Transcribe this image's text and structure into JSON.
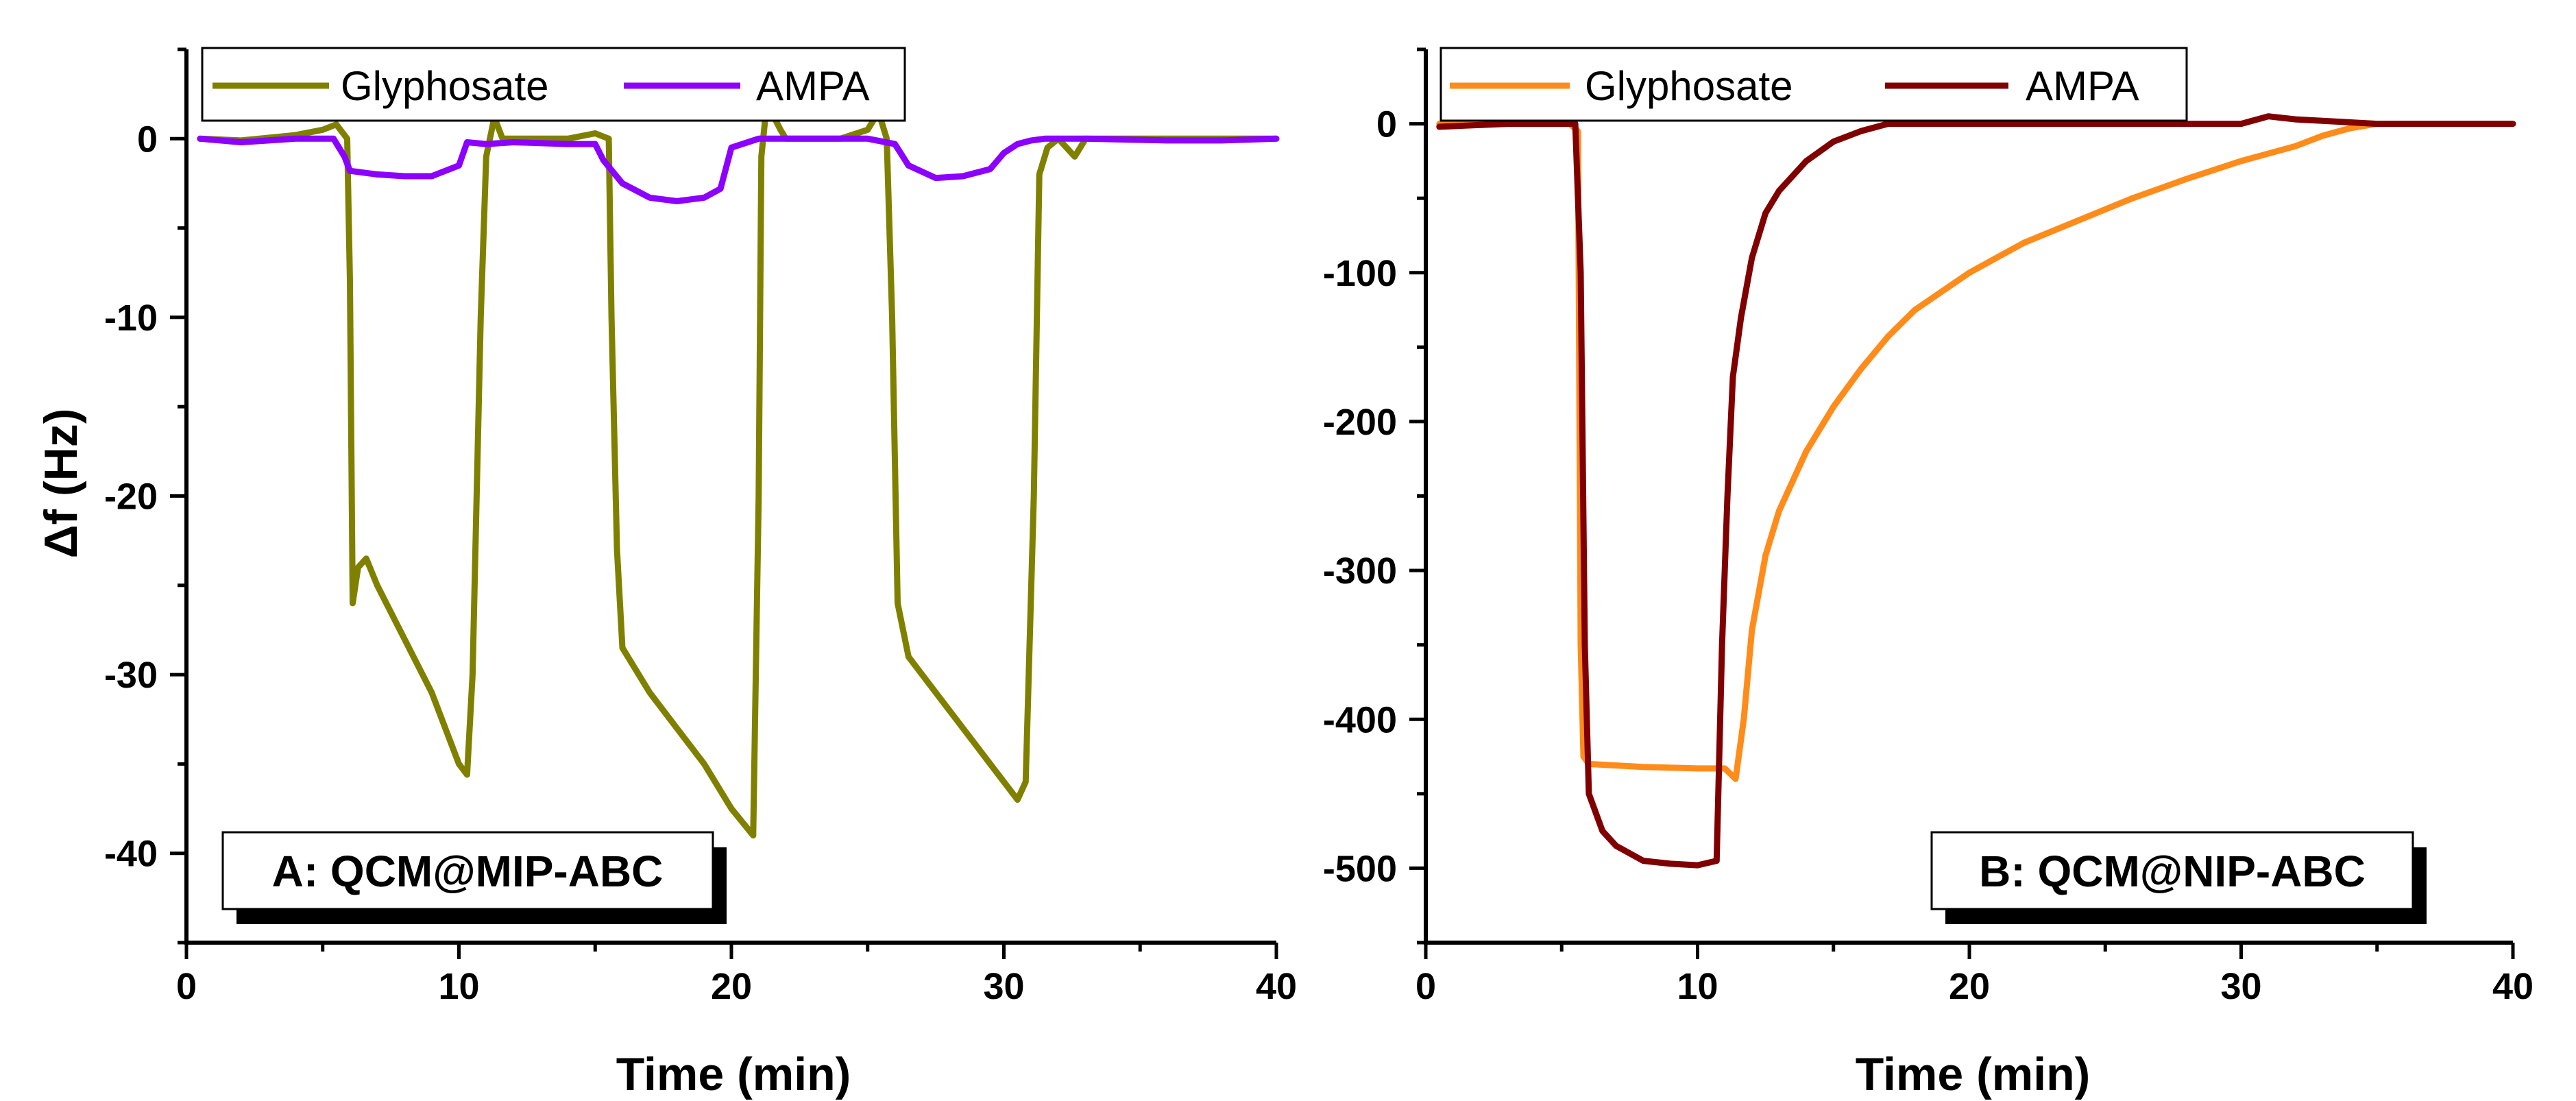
{
  "chart_data": [
    {
      "type": "line",
      "panel_label": "A: QCM@MIP-ABC",
      "xlabel": "Time (min)",
      "ylabel": "Δf (Hz)",
      "xlim": [
        0,
        40
      ],
      "ylim": [
        -45,
        5
      ],
      "xticks": [
        0,
        10,
        20,
        30,
        40
      ],
      "yticks": [
        0,
        -10,
        -20,
        -30,
        -40
      ],
      "legend_position": "top-left",
      "series": [
        {
          "name": "Glyphosate",
          "color": "#808000",
          "points": [
            [
              0.5,
              0
            ],
            [
              2,
              -0.1
            ],
            [
              4,
              0.2
            ],
            [
              5,
              0.5
            ],
            [
              5.5,
              0.8
            ],
            [
              5.9,
              0
            ],
            [
              6.0,
              -8
            ],
            [
              6.1,
              -26
            ],
            [
              6.3,
              -24
            ],
            [
              6.6,
              -23.5
            ],
            [
              7,
              -25
            ],
            [
              8,
              -28
            ],
            [
              9,
              -31
            ],
            [
              10,
              -35
            ],
            [
              10.3,
              -35.6
            ],
            [
              10.5,
              -30
            ],
            [
              10.8,
              -10
            ],
            [
              11,
              -1
            ],
            [
              11.3,
              1.2
            ],
            [
              11.6,
              0
            ],
            [
              12,
              0
            ],
            [
              14,
              0
            ],
            [
              15,
              0.3
            ],
            [
              15.5,
              0
            ],
            [
              15.6,
              -10
            ],
            [
              15.8,
              -23
            ],
            [
              16,
              -28.5
            ],
            [
              17,
              -31
            ],
            [
              18,
              -33
            ],
            [
              19,
              -35
            ],
            [
              20,
              -37.5
            ],
            [
              20.8,
              -39
            ],
            [
              21,
              -20
            ],
            [
              21.1,
              -1
            ],
            [
              21.3,
              2
            ],
            [
              21.8,
              0.5
            ],
            [
              22,
              0
            ],
            [
              24,
              0
            ],
            [
              25,
              0.5
            ],
            [
              25.4,
              1.5
            ],
            [
              25.7,
              0
            ],
            [
              25.9,
              -10
            ],
            [
              26.1,
              -26
            ],
            [
              26.5,
              -29
            ],
            [
              27.5,
              -31
            ],
            [
              28.5,
              -33
            ],
            [
              29.5,
              -35
            ],
            [
              30.5,
              -37
            ],
            [
              30.8,
              -36
            ],
            [
              31.1,
              -20
            ],
            [
              31.3,
              -2
            ],
            [
              31.6,
              -0.5
            ],
            [
              32,
              0
            ],
            [
              32.6,
              -1
            ],
            [
              33,
              0
            ],
            [
              35,
              0
            ],
            [
              38,
              0
            ],
            [
              40,
              0
            ]
          ]
        },
        {
          "name": "AMPA",
          "color": "#8b00ff",
          "points": [
            [
              0.5,
              0
            ],
            [
              2,
              -0.2
            ],
            [
              4,
              0
            ],
            [
              5.4,
              0
            ],
            [
              5.8,
              -1
            ],
            [
              6,
              -1.8
            ],
            [
              7,
              -2
            ],
            [
              8,
              -2.1
            ],
            [
              9,
              -2.1
            ],
            [
              10,
              -1.5
            ],
            [
              10.3,
              -0.2
            ],
            [
              11,
              -0.3
            ],
            [
              12,
              -0.2
            ],
            [
              14,
              -0.3
            ],
            [
              15,
              -0.3
            ],
            [
              15.3,
              -1.2
            ],
            [
              16,
              -2.5
            ],
            [
              17,
              -3.3
            ],
            [
              18,
              -3.5
            ],
            [
              19,
              -3.3
            ],
            [
              19.6,
              -2.8
            ],
            [
              20,
              -0.5
            ],
            [
              21,
              0
            ],
            [
              22,
              0
            ],
            [
              24,
              0
            ],
            [
              25,
              0
            ],
            [
              26,
              -0.3
            ],
            [
              26.5,
              -1.5
            ],
            [
              27.5,
              -2.2
            ],
            [
              28.5,
              -2.1
            ],
            [
              29.5,
              -1.7
            ],
            [
              30,
              -0.8
            ],
            [
              30.5,
              -0.3
            ],
            [
              31,
              -0.1
            ],
            [
              31.5,
              0
            ],
            [
              33,
              0
            ],
            [
              36,
              -0.1
            ],
            [
              38,
              -0.1
            ],
            [
              40,
              0
            ]
          ]
        }
      ]
    },
    {
      "type": "line",
      "panel_label": "B: QCM@NIP-ABC",
      "xlabel": "Time (min)",
      "ylabel": "",
      "xlim": [
        0,
        40
      ],
      "ylim": [
        -550,
        50
      ],
      "xticks": [
        0,
        10,
        20,
        30,
        40
      ],
      "yticks": [
        0,
        -100,
        -200,
        -300,
        -400,
        -500
      ],
      "legend_position": "top-left",
      "series": [
        {
          "name": "Glyphosate",
          "color": "#ff8c1a",
          "points": [
            [
              0.5,
              0
            ],
            [
              3,
              0
            ],
            [
              5.3,
              0
            ],
            [
              5.6,
              -5
            ],
            [
              5.7,
              -350
            ],
            [
              5.8,
              -425
            ],
            [
              6,
              -430
            ],
            [
              8,
              -432
            ],
            [
              10,
              -433
            ],
            [
              11,
              -433
            ],
            [
              11.4,
              -440
            ],
            [
              11.7,
              -400
            ],
            [
              12,
              -340
            ],
            [
              12.5,
              -290
            ],
            [
              13,
              -260
            ],
            [
              14,
              -220
            ],
            [
              15,
              -190
            ],
            [
              16,
              -165
            ],
            [
              17,
              -143
            ],
            [
              18,
              -125
            ],
            [
              20,
              -100
            ],
            [
              22,
              -80
            ],
            [
              24,
              -65
            ],
            [
              26,
              -50
            ],
            [
              28,
              -37
            ],
            [
              30,
              -25
            ],
            [
              32,
              -15
            ],
            [
              33,
              -8
            ],
            [
              34,
              -3
            ],
            [
              35,
              0
            ],
            [
              37,
              0
            ],
            [
              40,
              0
            ]
          ]
        },
        {
          "name": "AMPA",
          "color": "#800000",
          "points": [
            [
              0.5,
              -2
            ],
            [
              3,
              0
            ],
            [
              5,
              0
            ],
            [
              5.5,
              0
            ],
            [
              5.7,
              -100
            ],
            [
              5.85,
              -350
            ],
            [
              6,
              -450
            ],
            [
              6.5,
              -475
            ],
            [
              7,
              -485
            ],
            [
              8,
              -495
            ],
            [
              9,
              -497
            ],
            [
              10,
              -498
            ],
            [
              10.7,
              -495
            ],
            [
              10.9,
              -350
            ],
            [
              11.1,
              -250
            ],
            [
              11.3,
              -170
            ],
            [
              11.6,
              -130
            ],
            [
              12,
              -90
            ],
            [
              12.5,
              -60
            ],
            [
              13,
              -45
            ],
            [
              14,
              -25
            ],
            [
              15,
              -12
            ],
            [
              16,
              -5
            ],
            [
              17,
              0
            ],
            [
              20,
              0
            ],
            [
              25,
              0
            ],
            [
              30,
              0
            ],
            [
              31,
              5
            ],
            [
              32,
              3
            ],
            [
              35,
              0
            ],
            [
              40,
              0
            ]
          ]
        }
      ]
    }
  ]
}
